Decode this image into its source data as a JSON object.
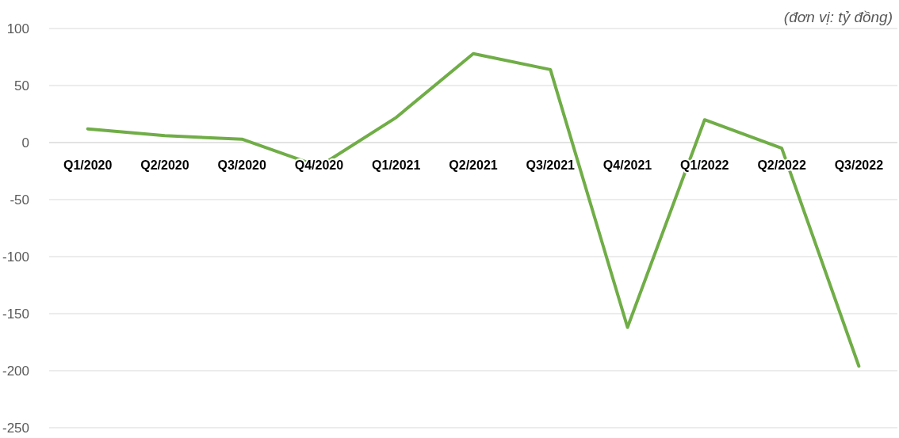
{
  "chart_data": {
    "type": "line",
    "categories": [
      "Q1/2020",
      "Q2/2020",
      "Q3/2020",
      "Q4/2020",
      "Q1/2021",
      "Q2/2021",
      "Q3/2021",
      "Q4/2021",
      "Q1/2022",
      "Q2/2022",
      "Q3/2022"
    ],
    "series": [
      {
        "color": "#70ad47",
        "values": [
          12,
          6,
          3,
          -21,
          22,
          78,
          64,
          -162,
          20,
          -5,
          -196
        ]
      }
    ],
    "ylim": [
      -250,
      100
    ],
    "yticks": [
      -250,
      -200,
      -150,
      -100,
      -50,
      0,
      50,
      100
    ],
    "grid": "y",
    "marker": "none",
    "line_style": "solid",
    "annotations": [
      "(đơn vị: tỷ đồng)"
    ]
  }
}
